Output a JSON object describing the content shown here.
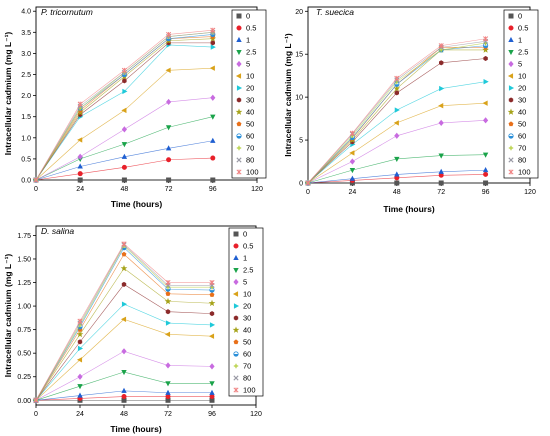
{
  "legend_concentrations": [
    "0",
    "0.5",
    "1",
    "2.5",
    "5",
    "10",
    "20",
    "30",
    "40",
    "50",
    "60",
    "70",
    "80",
    "100"
  ],
  "series_styles": [
    {
      "color": "#555555",
      "marker": "square"
    },
    {
      "color": "#e8202a",
      "marker": "circle"
    },
    {
      "color": "#1f5fd1",
      "marker": "triangle-up"
    },
    {
      "color": "#1aa34a",
      "marker": "triangle-down"
    },
    {
      "color": "#c86be0",
      "marker": "diamond"
    },
    {
      "color": "#d9a21a",
      "marker": "triangle-left"
    },
    {
      "color": "#1fc9d9",
      "marker": "triangle-right"
    },
    {
      "color": "#8b2a2a",
      "marker": "hexagon"
    },
    {
      "color": "#a6a31a",
      "marker": "star"
    },
    {
      "color": "#e8701a",
      "marker": "pentagon"
    },
    {
      "color": "#2a8fd9",
      "marker": "circle-half"
    },
    {
      "color": "#b5cf3f",
      "marker": "plus"
    },
    {
      "color": "#9a9aa5",
      "marker": "x"
    },
    {
      "color": "#f08080",
      "marker": "asterisk"
    }
  ],
  "chart_data": [
    {
      "type": "scatter",
      "title": "P. tricornutum",
      "xlabel": "Time (hours)",
      "ylabel": "Intracellular cadmium (mg L⁻¹)",
      "xlim": [
        0,
        120
      ],
      "ylim": [
        0,
        4.1
      ],
      "xticks": [
        0,
        24,
        48,
        72,
        96,
        120
      ],
      "yticks": [
        0,
        0.5,
        1.0,
        1.5,
        2.0,
        2.5,
        3.0,
        3.5,
        4.0
      ],
      "ytick_labels": [
        "0.0",
        "0.5",
        "1.0",
        "1.5",
        "2.0",
        "2.5",
        "3.0",
        "3.5",
        "4.0"
      ],
      "x": [
        0,
        24,
        48,
        72,
        96
      ],
      "legend_position": "right",
      "series": [
        {
          "name": "0",
          "values": [
            0,
            0,
            0,
            0,
            0
          ]
        },
        {
          "name": "0.5",
          "values": [
            0,
            0.15,
            0.3,
            0.48,
            0.52
          ]
        },
        {
          "name": "1",
          "values": [
            0,
            0.32,
            0.55,
            0.75,
            0.93
          ]
        },
        {
          "name": "2.5",
          "values": [
            0,
            0.5,
            0.85,
            1.25,
            1.5
          ]
        },
        {
          "name": "5",
          "values": [
            0,
            0.55,
            1.2,
            1.85,
            1.95
          ]
        },
        {
          "name": "10",
          "values": [
            0,
            0.95,
            1.65,
            2.6,
            2.65
          ]
        },
        {
          "name": "20",
          "values": [
            0,
            1.5,
            2.1,
            3.2,
            3.15
          ]
        },
        {
          "name": "30",
          "values": [
            0,
            1.55,
            2.35,
            3.25,
            3.25
          ]
        },
        {
          "name": "40",
          "values": [
            0,
            1.6,
            2.45,
            3.3,
            3.35
          ]
        },
        {
          "name": "50",
          "values": [
            0,
            1.65,
            2.5,
            3.35,
            3.4
          ]
        },
        {
          "name": "60",
          "values": [
            0,
            1.7,
            2.5,
            3.35,
            3.45
          ]
        },
        {
          "name": "70",
          "values": [
            0,
            1.7,
            2.55,
            3.4,
            3.5
          ]
        },
        {
          "name": "80",
          "values": [
            0,
            1.75,
            2.55,
            3.4,
            3.5
          ]
        },
        {
          "name": "100",
          "values": [
            0,
            1.8,
            2.6,
            3.45,
            3.55
          ]
        }
      ]
    },
    {
      "type": "scatter",
      "title": "T. suecica",
      "xlabel": "Time (hours)",
      "ylabel": "Intracellular cadmium (mg L⁻¹)",
      "xlim": [
        0,
        120
      ],
      "ylim": [
        0,
        20.5
      ],
      "xticks": [
        0,
        24,
        48,
        72,
        96,
        120
      ],
      "yticks": [
        0,
        5,
        10,
        15,
        20
      ],
      "ytick_labels": [
        "0",
        "5",
        "10",
        "15",
        "20"
      ],
      "x": [
        0,
        24,
        48,
        72,
        96
      ],
      "legend_position": "right",
      "series": [
        {
          "name": "0",
          "values": [
            0,
            0,
            0,
            0,
            0
          ]
        },
        {
          "name": "0.5",
          "values": [
            0,
            0.3,
            0.6,
            0.9,
            1.0
          ]
        },
        {
          "name": "1",
          "values": [
            0,
            0.5,
            1.0,
            1.3,
            1.5
          ]
        },
        {
          "name": "2.5",
          "values": [
            0,
            1.5,
            2.8,
            3.2,
            3.3
          ]
        },
        {
          "name": "5",
          "values": [
            0,
            2.5,
            5.5,
            7.0,
            7.3
          ]
        },
        {
          "name": "10",
          "values": [
            0,
            3.5,
            7.0,
            9.0,
            9.3
          ]
        },
        {
          "name": "20",
          "values": [
            0,
            4.5,
            8.5,
            11.0,
            11.8
          ]
        },
        {
          "name": "30",
          "values": [
            0,
            4.8,
            10.5,
            14.0,
            14.5
          ]
        },
        {
          "name": "40",
          "values": [
            0,
            5.0,
            11.0,
            15.5,
            15.5
          ]
        },
        {
          "name": "50",
          "values": [
            0,
            5.2,
            11.5,
            15.8,
            15.8
          ]
        },
        {
          "name": "60",
          "values": [
            0,
            5.3,
            11.5,
            15.5,
            16.0
          ]
        },
        {
          "name": "70",
          "values": [
            0,
            5.5,
            11.8,
            15.5,
            16.3
          ]
        },
        {
          "name": "80",
          "values": [
            0,
            5.7,
            12.0,
            15.8,
            16.5
          ]
        },
        {
          "name": "100",
          "values": [
            0,
            5.8,
            12.2,
            16.0,
            16.8
          ]
        }
      ]
    },
    {
      "type": "scatter",
      "title": "D. salina",
      "xlabel": "Time (hours)",
      "ylabel": "Intracellular cadmium (mg L⁻¹)",
      "xlim": [
        0,
        120
      ],
      "ylim": [
        -0.05,
        1.85
      ],
      "xticks": [
        0,
        24,
        48,
        72,
        96,
        120
      ],
      "yticks": [
        0,
        0.25,
        0.5,
        0.75,
        1.0,
        1.25,
        1.5,
        1.75
      ],
      "ytick_labels": [
        "0.00",
        "0.25",
        "0.50",
        "0.75",
        "1.00",
        "1.25",
        "1.50",
        "1.75"
      ],
      "x": [
        0,
        24,
        48,
        72,
        96
      ],
      "legend_position": "right",
      "series": [
        {
          "name": "0",
          "values": [
            0,
            0,
            0,
            0,
            0
          ]
        },
        {
          "name": "0.5",
          "values": [
            0,
            0.02,
            0.04,
            0.04,
            0.04
          ]
        },
        {
          "name": "1",
          "values": [
            0,
            0.05,
            0.1,
            0.08,
            0.08
          ]
        },
        {
          "name": "2.5",
          "values": [
            0,
            0.15,
            0.3,
            0.18,
            0.18
          ]
        },
        {
          "name": "5",
          "values": [
            0,
            0.25,
            0.52,
            0.37,
            0.36
          ]
        },
        {
          "name": "10",
          "values": [
            0,
            0.43,
            0.86,
            0.7,
            0.68
          ]
        },
        {
          "name": "20",
          "values": [
            0,
            0.55,
            1.02,
            0.82,
            0.8
          ]
        },
        {
          "name": "30",
          "values": [
            0,
            0.62,
            1.23,
            0.94,
            0.92
          ]
        },
        {
          "name": "40",
          "values": [
            0,
            0.7,
            1.4,
            1.05,
            1.03
          ]
        },
        {
          "name": "50",
          "values": [
            0,
            0.75,
            1.55,
            1.13,
            1.12
          ]
        },
        {
          "name": "60",
          "values": [
            0,
            0.78,
            1.62,
            1.18,
            1.17
          ]
        },
        {
          "name": "70",
          "values": [
            0,
            0.8,
            1.64,
            1.2,
            1.2
          ]
        },
        {
          "name": "80",
          "values": [
            0,
            0.82,
            1.65,
            1.22,
            1.22
          ]
        },
        {
          "name": "100",
          "values": [
            0,
            0.84,
            1.66,
            1.25,
            1.25
          ]
        }
      ]
    }
  ]
}
